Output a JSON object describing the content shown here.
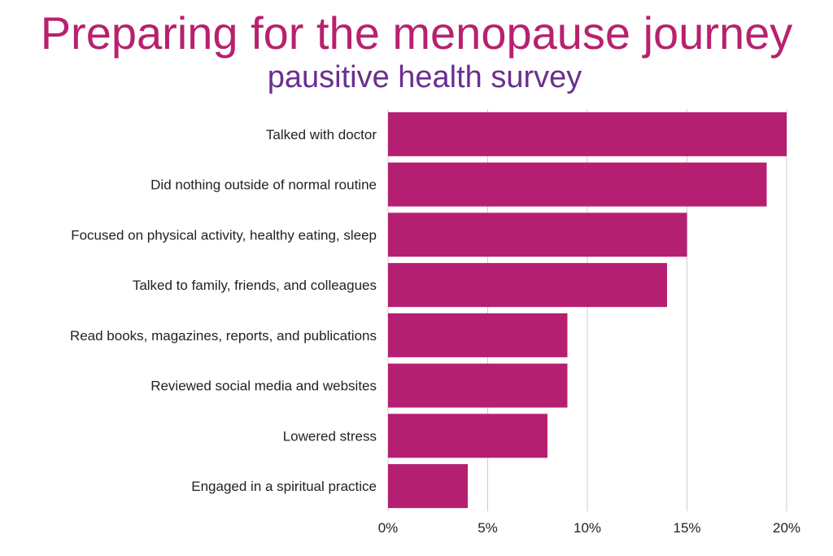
{
  "chart_data": {
    "type": "bar",
    "orientation": "horizontal",
    "title": "Preparing for the menopause journey",
    "subtitle": "pausitive health survey",
    "categories": [
      "Talked with doctor",
      "Did nothing outside of normal routine",
      "Focused on physical activity, healthy eating, sleep",
      "Talked to family, friends, and colleagues",
      "Read books, magazines, reports, and publications",
      "Reviewed social media and websites",
      "Lowered stress",
      "Engaged in a spiritual practice"
    ],
    "values": [
      20,
      19,
      15,
      14,
      9,
      9,
      8,
      4
    ],
    "value_unit": "%",
    "xlim": [
      0,
      20
    ],
    "xticks": [
      "0%",
      "5%",
      "10%",
      "15%",
      "20%"
    ],
    "xtick_values": [
      0,
      5,
      10,
      15,
      20
    ],
    "grid": "vertical",
    "legend": "none",
    "colors": {
      "bar": "#b51f72",
      "title": "#b8216f",
      "subtitle": "#6a2f8f",
      "grid": "#cccccc"
    }
  }
}
